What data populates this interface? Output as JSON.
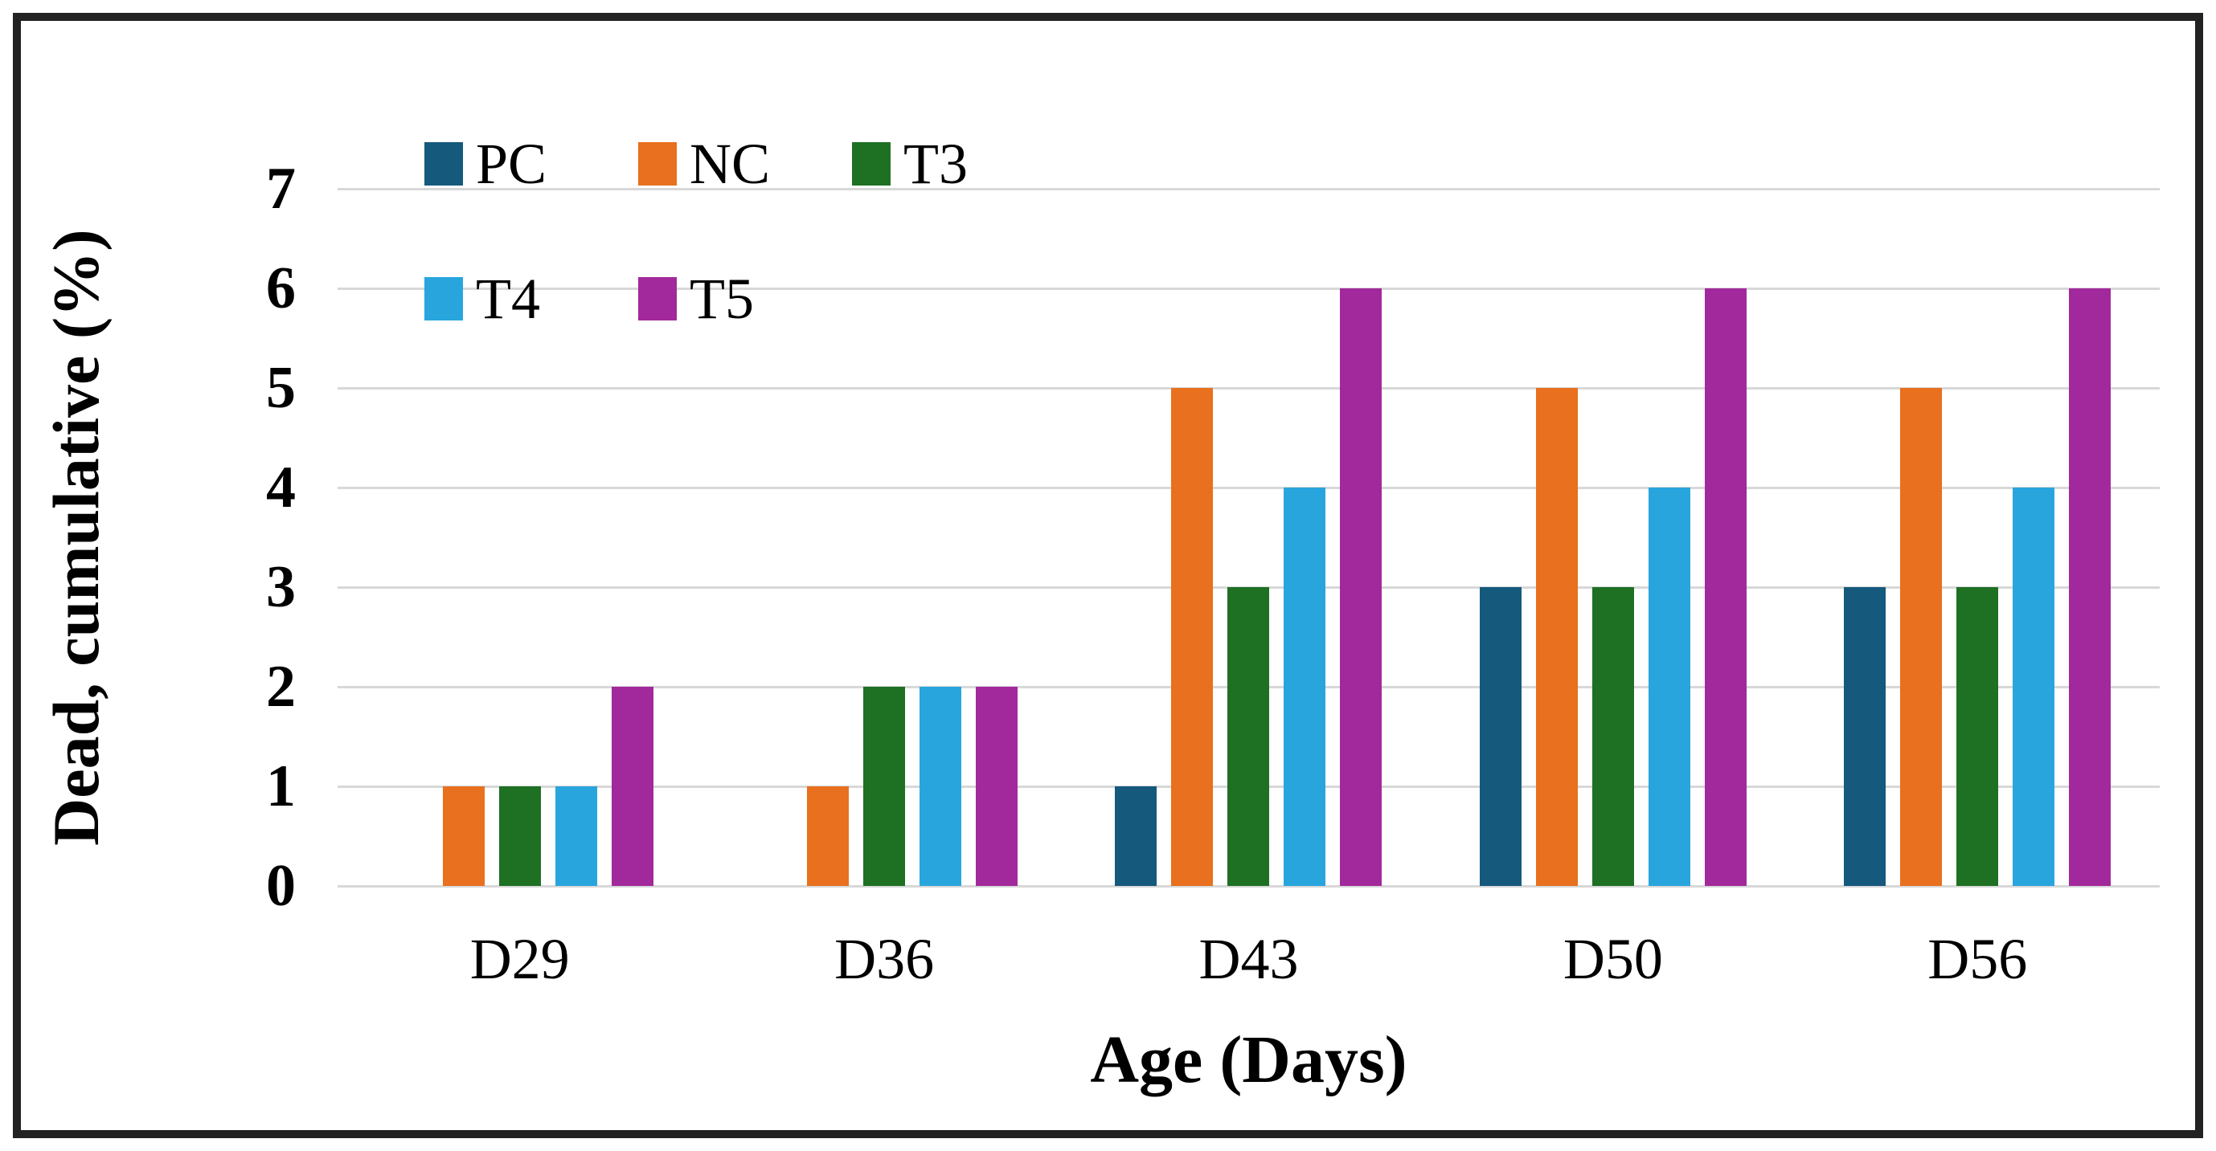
{
  "figure": {
    "frame_color": "#222222",
    "background": "#ffffff"
  },
  "chart_data": {
    "type": "bar",
    "title": "",
    "xlabel": "Age (Days)",
    "ylabel": "Dead, cumulative (%)",
    "categories": [
      "D29",
      "D36",
      "D43",
      "D50",
      "D56"
    ],
    "series": [
      {
        "name": "PC",
        "color": "#15597D",
        "values": [
          0,
          0,
          1,
          3,
          3
        ]
      },
      {
        "name": "NC",
        "color": "#E8701E",
        "values": [
          1,
          1,
          5,
          5,
          5
        ]
      },
      {
        "name": "T3",
        "color": "#1E7023",
        "values": [
          1,
          2,
          3,
          3,
          3
        ]
      },
      {
        "name": "T4",
        "color": "#29A5DD",
        "values": [
          1,
          2,
          4,
          4,
          4
        ]
      },
      {
        "name": "T5",
        "color": "#A2299B",
        "values": [
          2,
          2,
          6,
          6,
          6
        ]
      }
    ],
    "ylim": [
      0,
      7
    ],
    "yticks": [
      0,
      1,
      2,
      3,
      4,
      5,
      6,
      7
    ],
    "grid": true,
    "gridline_color": "#d8d8d8",
    "legend_position": "inside-top-left",
    "legend_rows": [
      [
        "PC",
        "NC",
        "T3"
      ],
      [
        "T4",
        "T5"
      ]
    ]
  }
}
